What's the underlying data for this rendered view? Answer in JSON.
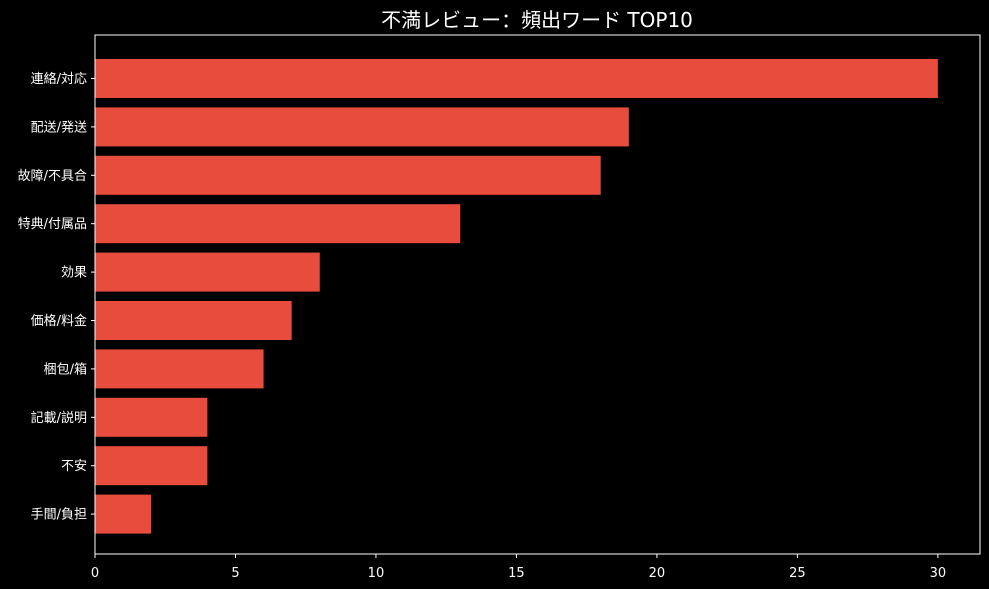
{
  "chart_data": {
    "type": "bar",
    "orientation": "horizontal",
    "title": "不満レビュー：頻出ワード TOP10",
    "xlabel": "",
    "ylabel": "",
    "categories": [
      "連絡/対応",
      "配送/発送",
      "故障/不具合",
      "特典/付属品",
      "効果",
      "価格/料金",
      "梱包/箱",
      "記載/説明",
      "不安",
      "手間/負担"
    ],
    "values": [
      30,
      19,
      18,
      13,
      8,
      7,
      6,
      4,
      4,
      2
    ],
    "xlim": [
      0,
      31.5
    ],
    "xticks": [
      "0",
      "5",
      "10",
      "15",
      "20",
      "25",
      "30"
    ],
    "grid": false,
    "bar_color": "#e74c3c",
    "background_color": "#000000",
    "text_color": "#ffffff"
  }
}
